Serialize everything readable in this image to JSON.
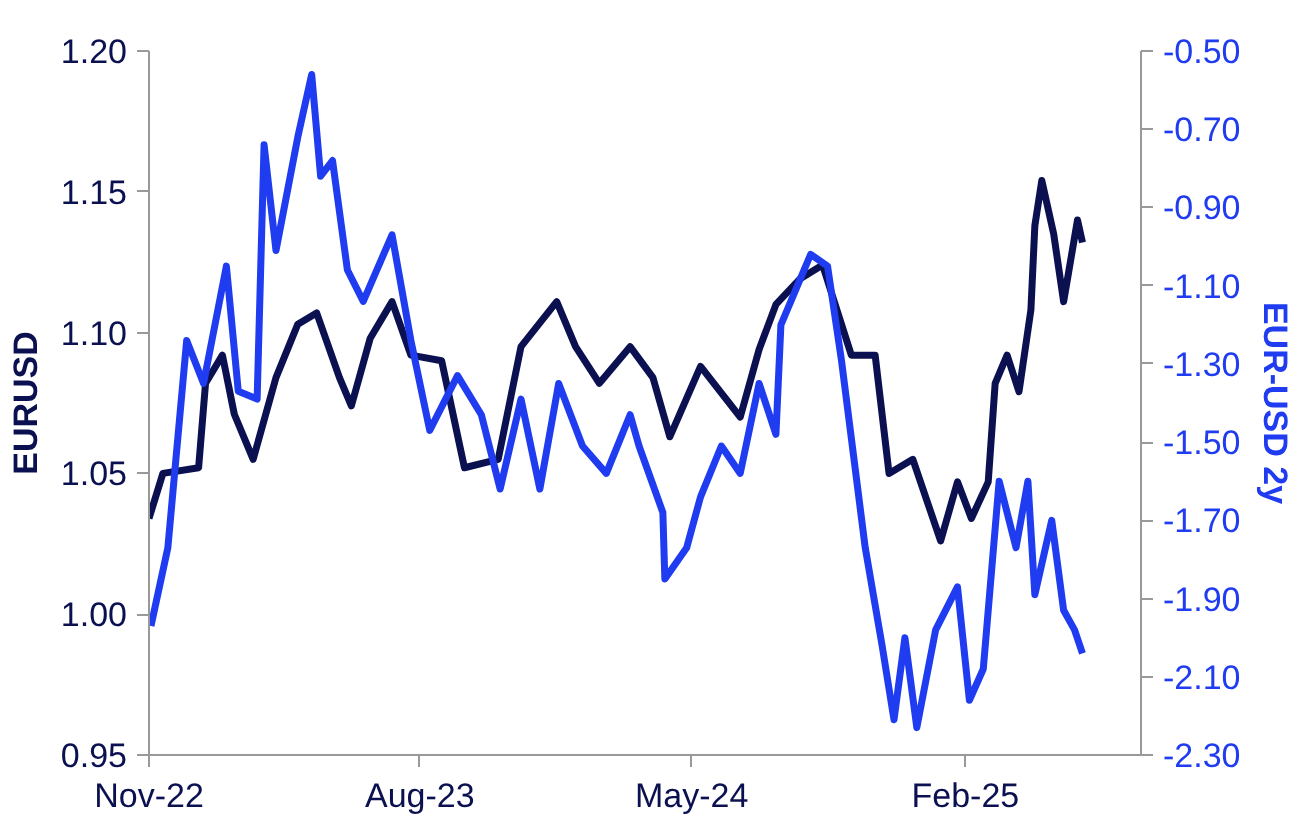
{
  "chart_data": {
    "type": "line",
    "ylabel": "EURUSD",
    "y2label": "EUR-USD 2y",
    "xlim": [
      "2022-11-01",
      "2025-07-28"
    ],
    "xticks": [
      {
        "value": "2022-11-01",
        "label": "Nov-22"
      },
      {
        "value": "2023-08-01",
        "label": "Aug-23"
      },
      {
        "value": "2024-05-01",
        "label": "May-24"
      },
      {
        "value": "2025-02-01",
        "label": "Feb-25"
      }
    ],
    "ylim": [
      0.95,
      1.2
    ],
    "yticks": [
      {
        "value": 0.95,
        "label": "0.95"
      },
      {
        "value": 1.0,
        "label": "1.00"
      },
      {
        "value": 1.05,
        "label": "1.05"
      },
      {
        "value": 1.1,
        "label": "1.10"
      },
      {
        "value": 1.15,
        "label": "1.15"
      },
      {
        "value": 1.2,
        "label": "1.20"
      }
    ],
    "y2lim": [
      -2.3,
      -0.5
    ],
    "y2ticks": [
      {
        "value": -2.3,
        "label": "-2.30"
      },
      {
        "value": -2.1,
        "label": "-2.10"
      },
      {
        "value": -1.9,
        "label": "-1.90"
      },
      {
        "value": -1.7,
        "label": "-1.70"
      },
      {
        "value": -1.5,
        "label": "-1.50"
      },
      {
        "value": -1.3,
        "label": "-1.30"
      },
      {
        "value": -1.1,
        "label": "-1.10"
      },
      {
        "value": -0.9,
        "label": "-0.90"
      },
      {
        "value": -0.7,
        "label": "-0.70"
      },
      {
        "value": -0.5,
        "label": "-0.50"
      }
    ],
    "marker": "none",
    "line_style": "solid",
    "series": [
      {
        "color": "#0b1150",
        "x": [
          "2022-11-01",
          "2022-11-15",
          "2022-12-21",
          "2022-12-28",
          "2023-01-14",
          "2023-01-26",
          "2023-02-14",
          "2023-03-09",
          "2023-03-31",
          "2023-04-19",
          "2023-05-12",
          "2023-05-24",
          "2023-06-12",
          "2023-07-04",
          "2023-07-23",
          "2023-08-23",
          "2023-09-15",
          "2023-10-19",
          "2023-11-11",
          "2023-12-17",
          "2024-01-05",
          "2024-01-29",
          "2024-02-29",
          "2024-03-23",
          "2024-04-09",
          "2024-05-10",
          "2024-06-19",
          "2024-07-08",
          "2024-07-25",
          "2024-08-18",
          "2024-09-10",
          "2024-10-09",
          "2024-11-02",
          "2024-11-16",
          "2024-12-10",
          "2025-01-07",
          "2025-01-24",
          "2025-02-07",
          "2025-02-24",
          "2025-03-03",
          "2025-03-15",
          "2025-03-27",
          "2025-04-08",
          "2025-04-12",
          "2025-04-19",
          "2025-05-01",
          "2025-05-11",
          "2025-05-25",
          "2025-05-30"
        ],
        "values": [
          1.034,
          1.05,
          1.052,
          1.082,
          1.092,
          1.071,
          1.055,
          1.084,
          1.103,
          1.107,
          1.084,
          1.074,
          1.098,
          1.111,
          1.092,
          1.09,
          1.052,
          1.055,
          1.095,
          1.111,
          1.095,
          1.082,
          1.095,
          1.084,
          1.063,
          1.088,
          1.07,
          1.094,
          1.11,
          1.119,
          1.124,
          1.092,
          1.092,
          1.05,
          1.055,
          1.026,
          1.047,
          1.034,
          1.047,
          1.082,
          1.092,
          1.079,
          1.108,
          1.138,
          1.154,
          1.135,
          1.111,
          1.14,
          1.132
        ]
      },
      {
        "color": "#1f3cf0",
        "axis": "y2",
        "x": [
          "2022-11-03",
          "2022-11-20",
          "2022-12-09",
          "2022-12-26",
          "2023-01-18",
          "2023-01-30",
          "2023-02-18",
          "2023-02-25",
          "2023-03-09",
          "2023-03-31",
          "2023-04-14",
          "2023-04-23",
          "2023-05-05",
          "2023-05-20",
          "2023-06-05",
          "2023-07-04",
          "2023-07-23",
          "2023-08-11",
          "2023-09-08",
          "2023-10-02",
          "2023-10-21",
          "2023-11-11",
          "2023-11-30",
          "2023-12-19",
          "2024-01-12",
          "2024-02-05",
          "2024-02-29",
          "2024-03-09",
          "2024-04-02",
          "2024-04-04",
          "2024-04-26",
          "2024-05-10",
          "2024-05-31",
          "2024-06-19",
          "2024-07-08",
          "2024-07-25",
          "2024-07-30",
          "2024-08-29",
          "2024-09-15",
          "2024-09-29",
          "2024-10-23",
          "2024-11-09",
          "2024-11-21",
          "2024-12-02",
          "2024-12-14",
          "2025-01-02",
          "2025-01-24",
          "2025-02-05",
          "2025-02-19",
          "2025-03-07",
          "2025-03-24",
          "2025-04-05",
          "2025-04-12",
          "2025-04-29",
          "2025-05-11",
          "2025-05-22",
          "2025-05-30"
        ],
        "values": [
          -1.97,
          -1.77,
          -1.24,
          -1.35,
          -1.05,
          -1.37,
          -1.39,
          -0.74,
          -1.01,
          -0.72,
          -0.56,
          -0.82,
          -0.78,
          -1.06,
          -1.14,
          -0.97,
          -1.24,
          -1.47,
          -1.33,
          -1.43,
          -1.62,
          -1.39,
          -1.62,
          -1.35,
          -1.51,
          -1.58,
          -1.43,
          -1.51,
          -1.68,
          -1.85,
          -1.77,
          -1.64,
          -1.51,
          -1.58,
          -1.35,
          -1.48,
          -1.2,
          -1.02,
          -1.05,
          -1.29,
          -1.77,
          -2.02,
          -2.21,
          -2.0,
          -2.23,
          -1.98,
          -1.87,
          -2.16,
          -2.08,
          -1.6,
          -1.77,
          -1.6,
          -1.89,
          -1.7,
          -1.93,
          -1.98,
          -2.04
        ]
      }
    ]
  }
}
